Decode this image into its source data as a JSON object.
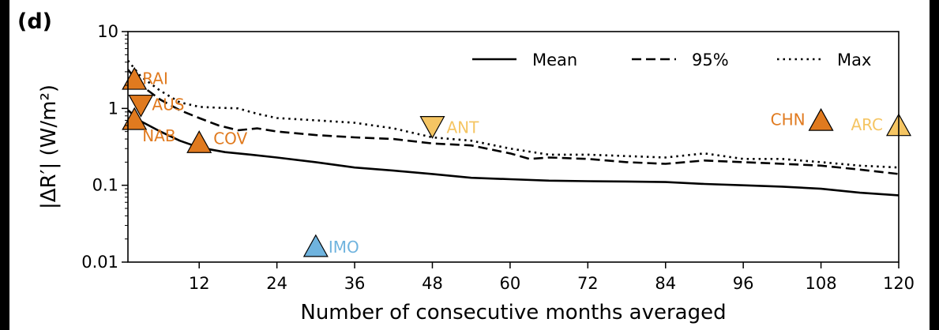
{
  "panel_label": "(d)",
  "chart_data": {
    "type": "line",
    "xlabel": "Number of consecutive months averaged",
    "ylabel": "|ΔR′| (W/m²)",
    "yscale": "log",
    "xlim": [
      1,
      120
    ],
    "ylim": [
      0.01,
      10
    ],
    "xticks": [
      12,
      24,
      36,
      48,
      60,
      72,
      84,
      96,
      108,
      120
    ],
    "xtick_labels": [
      "12",
      "24",
      "36",
      "48",
      "60",
      "72",
      "84",
      "96",
      "108",
      "120"
    ],
    "yticks": [
      0.01,
      0.1,
      1,
      10
    ],
    "ytick_labels": [
      "0.01",
      "0.1",
      "1",
      "10"
    ],
    "legend_position": "top-right",
    "series": [
      {
        "name": "Mean",
        "style": "solid",
        "color": "#000000",
        "x": [
          1,
          3,
          6,
          9,
          12,
          16,
          20,
          24,
          30,
          36,
          42,
          48,
          54,
          60,
          66,
          72,
          78,
          84,
          90,
          96,
          102,
          108,
          114,
          120
        ],
        "y": [
          0.95,
          0.68,
          0.5,
          0.38,
          0.31,
          0.27,
          0.25,
          0.23,
          0.2,
          0.17,
          0.155,
          0.14,
          0.125,
          0.12,
          0.115,
          0.113,
          0.112,
          0.11,
          0.104,
          0.1,
          0.096,
          0.09,
          0.08,
          0.074
        ]
      },
      {
        "name": "95%",
        "style": "dashed",
        "color": "#000000",
        "x": [
          1,
          3,
          6,
          9,
          12,
          15,
          18,
          21,
          24,
          30,
          36,
          42,
          48,
          54,
          60,
          63,
          66,
          72,
          78,
          84,
          90,
          96,
          102,
          108,
          114,
          120
        ],
        "y": [
          3.2,
          2.0,
          1.3,
          0.95,
          0.75,
          0.6,
          0.52,
          0.55,
          0.5,
          0.45,
          0.42,
          0.4,
          0.35,
          0.33,
          0.26,
          0.22,
          0.23,
          0.22,
          0.2,
          0.19,
          0.21,
          0.2,
          0.19,
          0.18,
          0.16,
          0.14
        ]
      },
      {
        "name": "Max",
        "style": "dotted",
        "color": "#000000",
        "x": [
          1,
          3,
          6,
          9,
          12,
          15,
          18,
          21,
          24,
          30,
          36,
          42,
          48,
          54,
          60,
          66,
          72,
          78,
          84,
          90,
          96,
          102,
          108,
          114,
          120
        ],
        "y": [
          4.2,
          2.6,
          1.7,
          1.2,
          1.05,
          1.02,
          1.0,
          0.85,
          0.75,
          0.7,
          0.65,
          0.55,
          0.42,
          0.38,
          0.3,
          0.25,
          0.25,
          0.24,
          0.23,
          0.26,
          0.22,
          0.22,
          0.2,
          0.18,
          0.17
        ]
      }
    ],
    "markers": [
      {
        "label": "RAI",
        "x": 2,
        "y": 2.4,
        "shape": "triangle-up",
        "color": "#e07a1f"
      },
      {
        "label": "AUS",
        "x": 3,
        "y": 1.1,
        "shape": "triangle-down",
        "color": "#e07a1f"
      },
      {
        "label": "NAB",
        "x": 2,
        "y": 0.72,
        "shape": "triangle-up",
        "color": "#e07a1f"
      },
      {
        "label": "COV",
        "x": 12,
        "y": 0.36,
        "shape": "triangle-up",
        "color": "#e07a1f"
      },
      {
        "label": "IMO",
        "x": 30,
        "y": 0.016,
        "shape": "triangle-up",
        "color": "#6fb3de"
      },
      {
        "label": "ANT",
        "x": 48,
        "y": 0.58,
        "shape": "triangle-down",
        "color": "#f5c563"
      },
      {
        "label": "CHN",
        "x": 108,
        "y": 0.7,
        "shape": "triangle-up",
        "color": "#e07a1f"
      },
      {
        "label": "ARC",
        "x": 120,
        "y": 0.6,
        "shape": "triangle-up",
        "color": "#f5c563"
      }
    ]
  }
}
